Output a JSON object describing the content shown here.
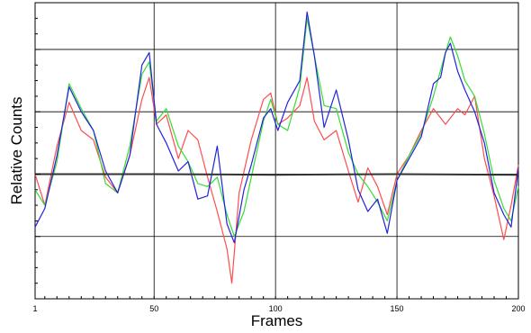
{
  "chart_data": {
    "type": "line",
    "title": "",
    "xlabel": "Frames",
    "ylabel": "Relative Counts",
    "xlim": [
      1,
      200
    ],
    "ylim": [
      -2,
      2.75
    ],
    "x_ticks": [
      1,
      50,
      100,
      150,
      200
    ],
    "x_tick_labels": [
      "1",
      "50",
      "100",
      "150",
      "200"
    ],
    "grid": true,
    "legend": "none",
    "series": [
      {
        "color": "#ff4d4d",
        "points": [
          [
            1,
            0.0
          ],
          [
            5,
            -0.5
          ],
          [
            10,
            0.45
          ],
          [
            15,
            1.15
          ],
          [
            20,
            0.7
          ],
          [
            25,
            0.55
          ],
          [
            30,
            -0.05
          ],
          [
            35,
            -0.3
          ],
          [
            40,
            0.3
          ],
          [
            45,
            1.2
          ],
          [
            48,
            1.55
          ],
          [
            51,
            0.8
          ],
          [
            55,
            0.95
          ],
          [
            60,
            0.25
          ],
          [
            64,
            0.7
          ],
          [
            68,
            0.55
          ],
          [
            72,
            -0.05
          ],
          [
            76,
            -0.6
          ],
          [
            80,
            -1.2
          ],
          [
            82,
            -1.75
          ],
          [
            85,
            -0.3
          ],
          [
            90,
            0.55
          ],
          [
            95,
            1.2
          ],
          [
            98,
            1.3
          ],
          [
            101,
            0.8
          ],
          [
            105,
            0.9
          ],
          [
            110,
            1.1
          ],
          [
            113,
            1.55
          ],
          [
            116,
            0.85
          ],
          [
            120,
            0.55
          ],
          [
            125,
            0.7
          ],
          [
            130,
            0.05
          ],
          [
            134,
            -0.45
          ],
          [
            138,
            0.1
          ],
          [
            142,
            -0.2
          ],
          [
            146,
            -0.65
          ],
          [
            150,
            0.0
          ],
          [
            155,
            0.3
          ],
          [
            160,
            0.7
          ],
          [
            165,
            1.05
          ],
          [
            170,
            0.8
          ],
          [
            175,
            1.05
          ],
          [
            178,
            0.95
          ],
          [
            182,
            1.25
          ],
          [
            186,
            0.25
          ],
          [
            190,
            -0.35
          ],
          [
            194,
            -1.05
          ],
          [
            197,
            -0.5
          ],
          [
            200,
            0.15
          ]
        ]
      },
      {
        "color": "#33dd33",
        "points": [
          [
            1,
            -0.25
          ],
          [
            5,
            -0.5
          ],
          [
            10,
            0.2
          ],
          [
            15,
            1.45
          ],
          [
            20,
            1.05
          ],
          [
            25,
            0.7
          ],
          [
            30,
            -0.15
          ],
          [
            35,
            -0.3
          ],
          [
            40,
            0.45
          ],
          [
            45,
            1.6
          ],
          [
            48,
            1.8
          ],
          [
            51,
            0.85
          ],
          [
            55,
            1.05
          ],
          [
            60,
            0.45
          ],
          [
            64,
            0.2
          ],
          [
            68,
            -0.15
          ],
          [
            72,
            -0.2
          ],
          [
            76,
            -0.05
          ],
          [
            80,
            -0.65
          ],
          [
            83,
            -1.0
          ],
          [
            87,
            -0.6
          ],
          [
            90,
            -0.05
          ],
          [
            95,
            0.85
          ],
          [
            98,
            1.2
          ],
          [
            101,
            0.8
          ],
          [
            105,
            0.7
          ],
          [
            110,
            1.4
          ],
          [
            113,
            2.5
          ],
          [
            116,
            1.9
          ],
          [
            120,
            1.1
          ],
          [
            125,
            1.05
          ],
          [
            130,
            0.35
          ],
          [
            134,
            0.0
          ],
          [
            138,
            -0.2
          ],
          [
            142,
            -0.45
          ],
          [
            146,
            -0.75
          ],
          [
            150,
            -0.1
          ],
          [
            155,
            0.3
          ],
          [
            160,
            0.65
          ],
          [
            165,
            1.25
          ],
          [
            170,
            1.95
          ],
          [
            172,
            2.2
          ],
          [
            175,
            1.9
          ],
          [
            178,
            1.5
          ],
          [
            182,
            1.25
          ],
          [
            186,
            0.65
          ],
          [
            190,
            -0.1
          ],
          [
            194,
            -0.55
          ],
          [
            197,
            -0.75
          ],
          [
            200,
            -0.2
          ]
        ]
      },
      {
        "color": "#2222dd",
        "points": [
          [
            1,
            -0.85
          ],
          [
            5,
            -0.55
          ],
          [
            10,
            0.3
          ],
          [
            15,
            1.4
          ],
          [
            20,
            1.0
          ],
          [
            25,
            0.7
          ],
          [
            30,
            0.05
          ],
          [
            35,
            -0.3
          ],
          [
            40,
            0.3
          ],
          [
            45,
            1.75
          ],
          [
            48,
            1.95
          ],
          [
            51,
            0.8
          ],
          [
            55,
            0.5
          ],
          [
            60,
            0.05
          ],
          [
            64,
            0.2
          ],
          [
            68,
            -0.4
          ],
          [
            72,
            -0.35
          ],
          [
            76,
            0.45
          ],
          [
            80,
            -0.8
          ],
          [
            83,
            -1.1
          ],
          [
            87,
            -0.25
          ],
          [
            90,
            0.15
          ],
          [
            95,
            0.9
          ],
          [
            98,
            1.05
          ],
          [
            101,
            0.7
          ],
          [
            105,
            1.15
          ],
          [
            110,
            1.5
          ],
          [
            113,
            2.6
          ],
          [
            116,
            1.9
          ],
          [
            120,
            0.75
          ],
          [
            125,
            1.35
          ],
          [
            130,
            0.55
          ],
          [
            134,
            -0.25
          ],
          [
            138,
            -0.6
          ],
          [
            142,
            -0.4
          ],
          [
            146,
            -0.95
          ],
          [
            150,
            -0.1
          ],
          [
            155,
            0.25
          ],
          [
            160,
            0.6
          ],
          [
            165,
            1.45
          ],
          [
            168,
            1.55
          ],
          [
            170,
            1.95
          ],
          [
            172,
            2.1
          ],
          [
            175,
            1.65
          ],
          [
            178,
            1.35
          ],
          [
            182,
            1.0
          ],
          [
            186,
            0.5
          ],
          [
            190,
            -0.3
          ],
          [
            194,
            -0.65
          ],
          [
            197,
            -0.85
          ],
          [
            200,
            0.1
          ]
        ]
      },
      {
        "color": "#333333",
        "points": [
          [
            1,
            0.0
          ],
          [
            50,
            0.0
          ],
          [
            100,
            -0.01
          ],
          [
            150,
            0.0
          ],
          [
            200,
            -0.01
          ]
        ]
      }
    ]
  }
}
